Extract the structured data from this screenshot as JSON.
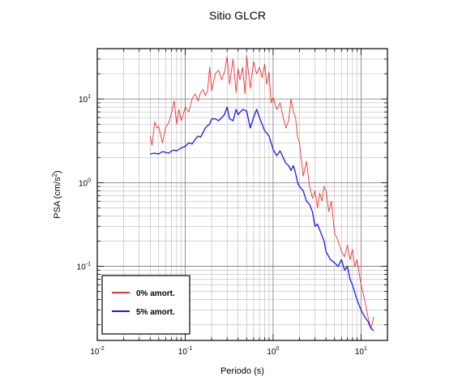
{
  "chart_data": {
    "type": "line",
    "title": "Sitio GLCR",
    "xlabel": "Periodo (s)",
    "ylabel": "PSA (cm/s",
    "ylabel_sup": "2",
    "ylabel_end": ")",
    "x_scale": "log",
    "y_scale": "log",
    "xlim": [
      0.01,
      20
    ],
    "ylim": [
      0.013,
      40
    ],
    "grid": true,
    "legend_position": "bottom-left",
    "x_ticks": [
      {
        "base": "10",
        "exp": "-2"
      },
      {
        "base": "10",
        "exp": "-1"
      },
      {
        "base": "10",
        "exp": "0"
      },
      {
        "base": "10",
        "exp": "1"
      }
    ],
    "y_ticks": [
      {
        "base": "10",
        "exp": "-1"
      },
      {
        "base": "10",
        "exp": "0"
      },
      {
        "base": "10",
        "exp": "1"
      }
    ],
    "series": [
      {
        "name": "0% amort.",
        "color": "#ee3333",
        "x": [
          0.04,
          0.042,
          0.045,
          0.048,
          0.05,
          0.055,
          0.06,
          0.065,
          0.07,
          0.075,
          0.08,
          0.085,
          0.09,
          0.095,
          0.1,
          0.11,
          0.12,
          0.13,
          0.14,
          0.15,
          0.16,
          0.17,
          0.18,
          0.19,
          0.2,
          0.22,
          0.24,
          0.26,
          0.28,
          0.3,
          0.32,
          0.35,
          0.38,
          0.4,
          0.42,
          0.45,
          0.48,
          0.5,
          0.55,
          0.6,
          0.65,
          0.7,
          0.75,
          0.8,
          0.85,
          0.9,
          0.95,
          1.0,
          1.1,
          1.2,
          1.3,
          1.4,
          1.5,
          1.6,
          1.7,
          1.8,
          1.9,
          2.0,
          2.2,
          2.4,
          2.6,
          2.8,
          3.0,
          3.2,
          3.4,
          3.6,
          3.8,
          4.0,
          4.3,
          4.6,
          5.0,
          5.5,
          6.0,
          6.5,
          7.0,
          7.5,
          8.0,
          8.5,
          9.0,
          10.0,
          11.0,
          12.0,
          13.0,
          14.0
        ],
        "y": [
          3.6,
          2.8,
          5.3,
          4.5,
          4.7,
          3.0,
          4.6,
          5.2,
          6.9,
          9.5,
          5.0,
          7.5,
          5.5,
          6.5,
          8.0,
          7.0,
          10.0,
          11.5,
          9.5,
          12.0,
          13.0,
          11.0,
          12.5,
          24.0,
          12.5,
          20.0,
          22.0,
          17.0,
          21.0,
          32.0,
          15.0,
          30.0,
          12.0,
          23.0,
          17.0,
          24.0,
          11.5,
          33.0,
          13.5,
          28.0,
          20.0,
          24.0,
          18.0,
          26.0,
          15.0,
          21.0,
          9.0,
          10.5,
          7.5,
          9.0,
          6.0,
          4.5,
          5.5,
          10.0,
          7.0,
          6.0,
          3.5,
          3.0,
          1.2,
          1.8,
          0.9,
          0.65,
          0.8,
          0.5,
          0.75,
          0.6,
          0.9,
          0.8,
          0.45,
          0.6,
          0.25,
          0.2,
          0.15,
          0.13,
          0.18,
          0.12,
          0.16,
          0.1,
          0.12,
          0.06,
          0.04,
          0.025,
          0.018,
          0.025
        ]
      },
      {
        "name": "5% amort.",
        "color": "#1a1aee",
        "x": [
          0.04,
          0.045,
          0.05,
          0.055,
          0.06,
          0.065,
          0.07,
          0.075,
          0.08,
          0.09,
          0.1,
          0.11,
          0.12,
          0.13,
          0.14,
          0.15,
          0.16,
          0.17,
          0.18,
          0.19,
          0.2,
          0.22,
          0.24,
          0.26,
          0.28,
          0.3,
          0.32,
          0.35,
          0.38,
          0.4,
          0.45,
          0.5,
          0.55,
          0.6,
          0.65,
          0.7,
          0.75,
          0.8,
          0.9,
          1.0,
          1.1,
          1.2,
          1.3,
          1.4,
          1.5,
          1.6,
          1.7,
          1.8,
          1.9,
          2.0,
          2.2,
          2.4,
          2.6,
          2.8,
          3.0,
          3.2,
          3.5,
          3.8,
          4.0,
          4.5,
          5.0,
          5.5,
          6.0,
          6.5,
          7.0,
          7.5,
          8.0,
          9.0,
          10.0,
          11.0,
          12.0,
          13.0,
          14.0
        ],
        "y": [
          2.2,
          2.25,
          2.2,
          2.35,
          2.3,
          2.25,
          2.4,
          2.45,
          2.4,
          2.6,
          2.7,
          3.0,
          2.9,
          3.3,
          3.6,
          3.5,
          4.0,
          4.5,
          4.8,
          5.0,
          5.8,
          5.8,
          5.5,
          6.0,
          6.5,
          8.0,
          5.8,
          5.5,
          7.5,
          6.5,
          7.5,
          7.2,
          4.5,
          6.0,
          7.5,
          6.0,
          5.0,
          4.2,
          3.6,
          2.5,
          2.1,
          2.4,
          2.0,
          1.7,
          1.6,
          1.4,
          1.6,
          1.3,
          1.0,
          0.9,
          0.8,
          0.6,
          0.55,
          0.45,
          0.3,
          0.32,
          0.25,
          0.2,
          0.15,
          0.12,
          0.11,
          0.1,
          0.12,
          0.09,
          0.1,
          0.07,
          0.06,
          0.04,
          0.03,
          0.025,
          0.022,
          0.018,
          0.017
        ]
      }
    ]
  }
}
